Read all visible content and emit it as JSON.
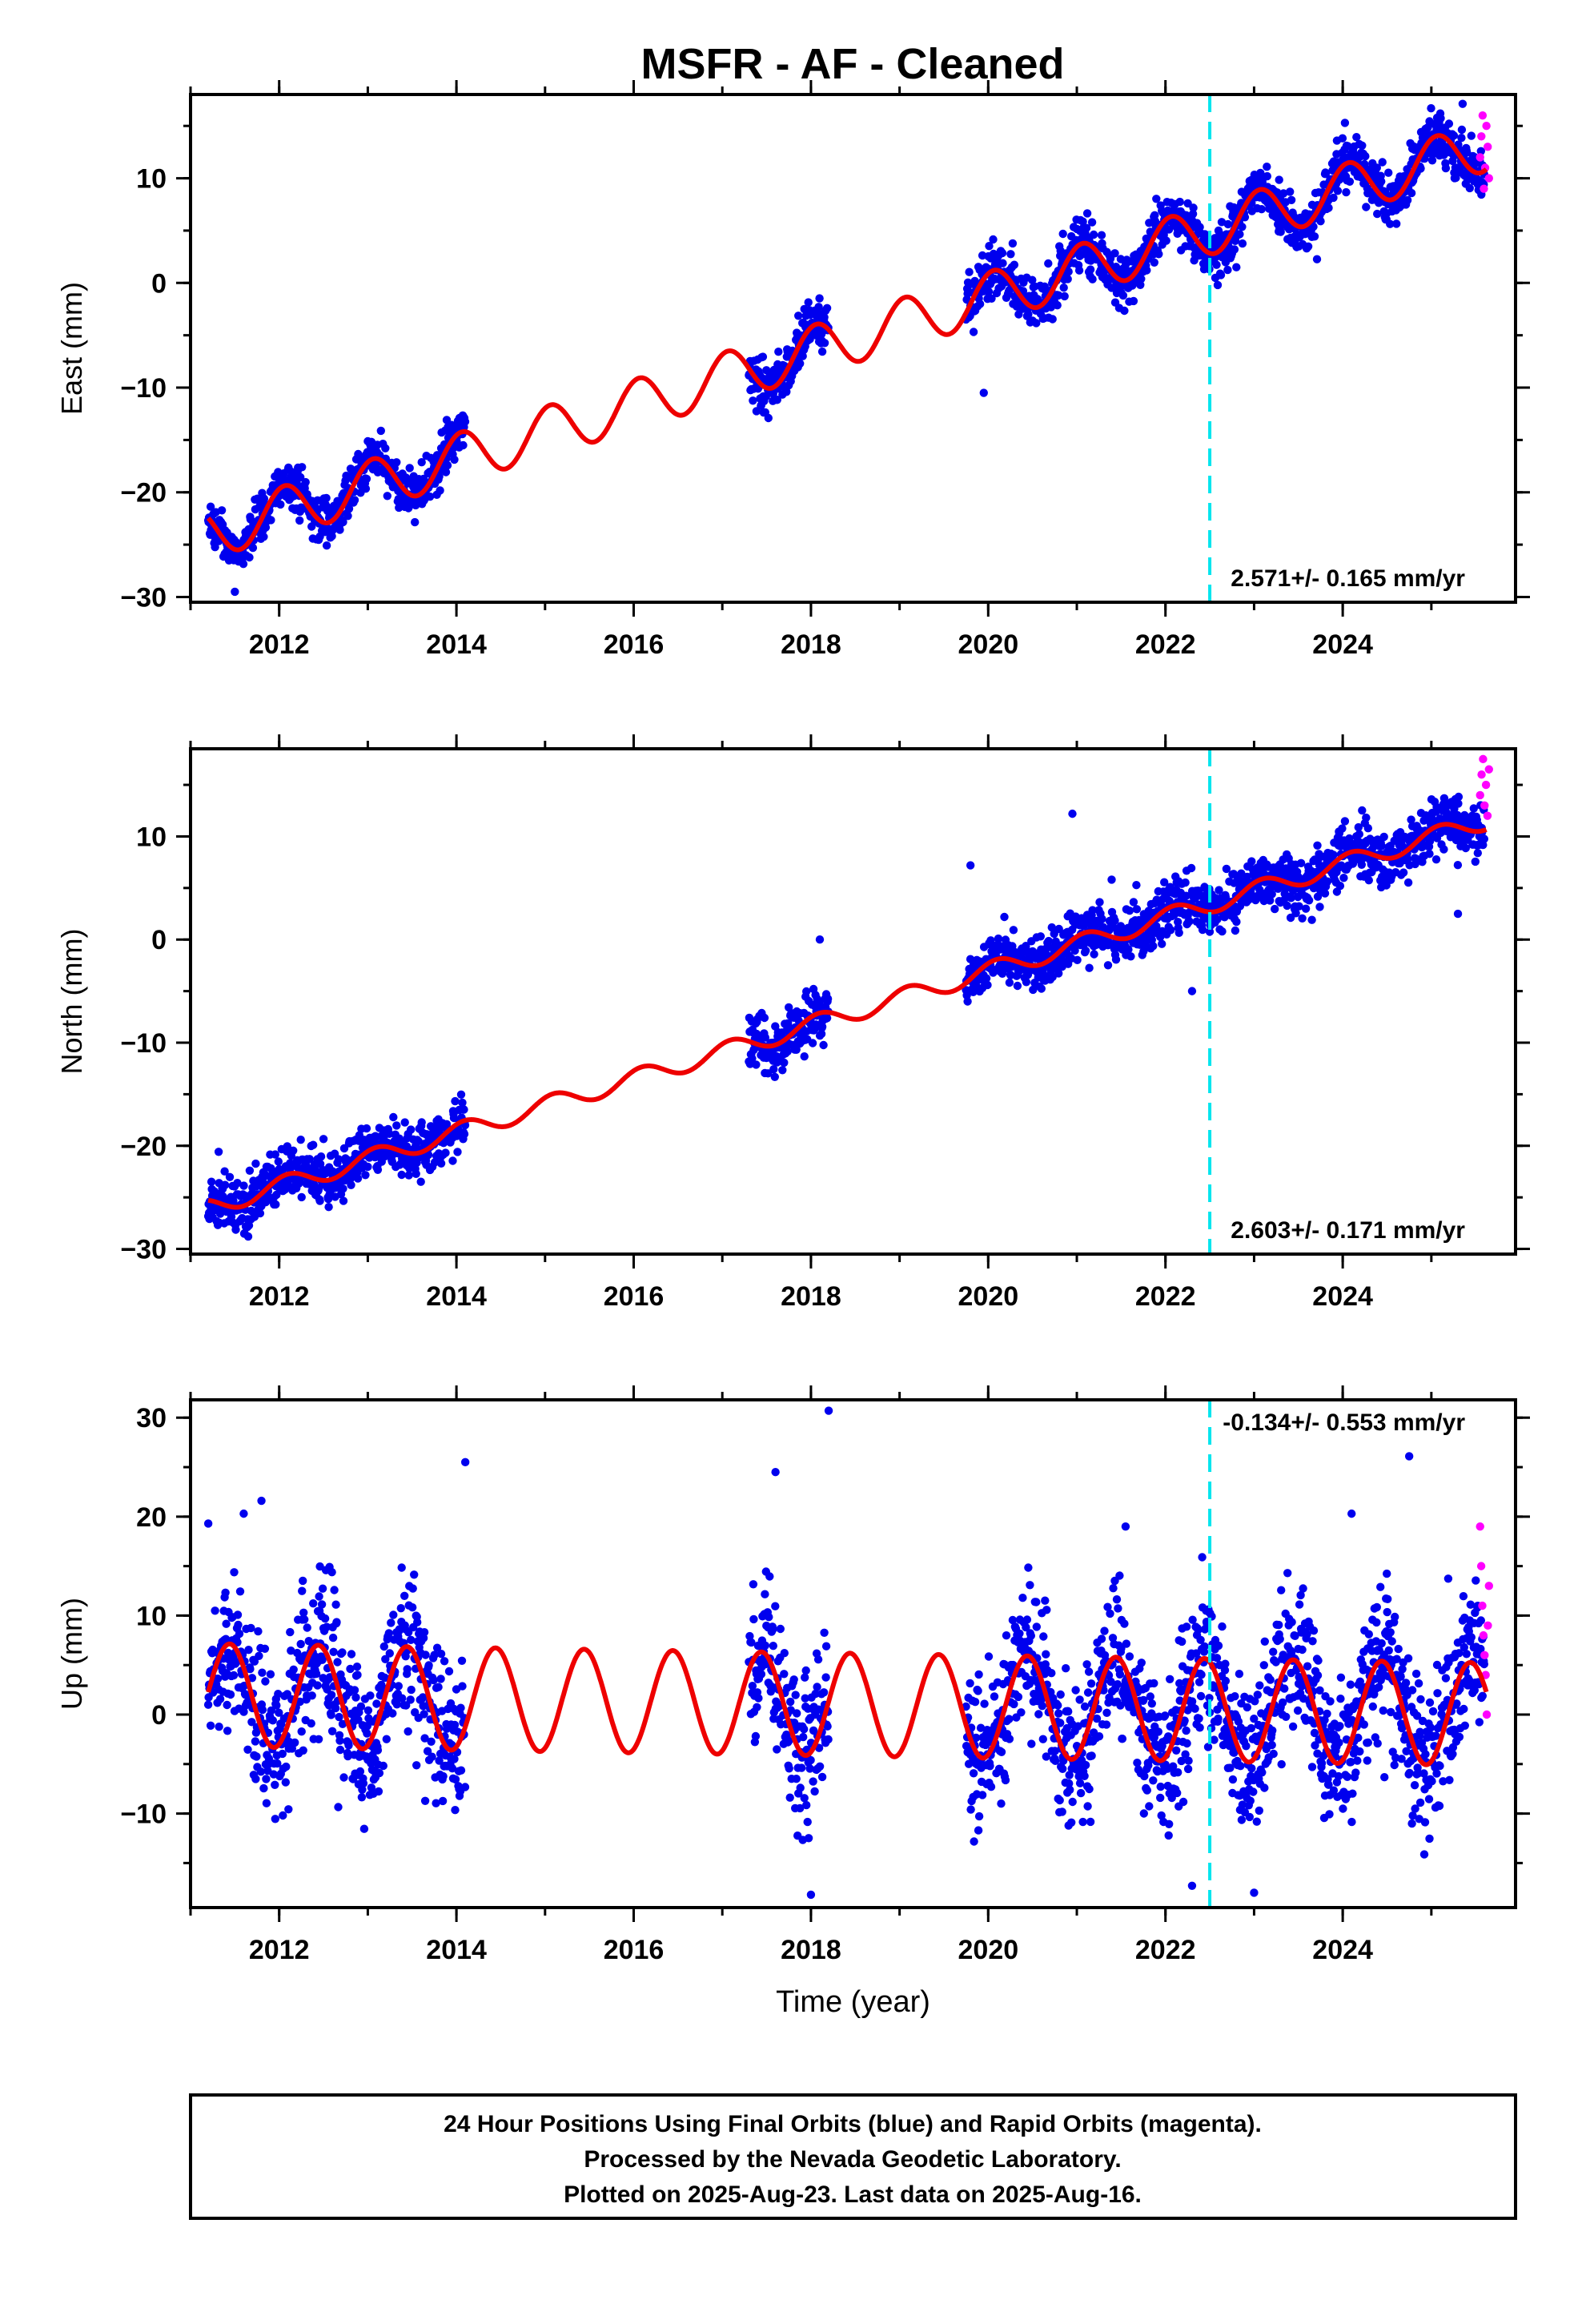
{
  "title": "MSFR  - AF - Cleaned",
  "footer": {
    "lines": [
      "24 Hour Positions Using Final Orbits (blue) and Rapid Orbits (magenta).",
      "Processed by the Nevada Geodetic Laboratory.",
      "Plotted on 2025-Aug-23. Last data on 2025-Aug-16."
    ]
  },
  "colors": {
    "final": "#0000ee",
    "rapid": "#ff00ff",
    "model": "#ee0000",
    "marker": "#00e5ee"
  },
  "chart_data": [
    {
      "type": "scatter",
      "ylabel": "East (mm)",
      "xlim": [
        2011.0,
        2025.95
      ],
      "ylim": [
        -30.5,
        18.0
      ],
      "x_ticks": [
        2012,
        2014,
        2016,
        2018,
        2020,
        2022,
        2024
      ],
      "y_ticks": [
        -30,
        -20,
        -10,
        0,
        10
      ],
      "marker_line_x": 2022.5,
      "rate_label": "2.571+/- 0.165 mm/yr",
      "rate_position": "bottom-right",
      "model": {
        "intercept": -24.5,
        "rate": 2.571,
        "amplitude": 2.4,
        "phase": 1.2
      },
      "data_segments": [
        [
          2011.2,
          2014.1
        ],
        [
          2017.3,
          2018.2
        ],
        [
          2019.75,
          2025.6
        ]
      ],
      "scatter_sd": 1.2,
      "rapid_range": [
        2025.55,
        2025.65
      ],
      "rapid_values": [
        12,
        14,
        16,
        9,
        11,
        15,
        13,
        10
      ],
      "outliers": [
        [
          2019.95,
          -10.5
        ],
        [
          2022.8,
          1.5
        ],
        [
          2011.5,
          -29.5
        ]
      ]
    },
    {
      "type": "scatter",
      "ylabel": "North (mm)",
      "xlim": [
        2011.0,
        2025.95
      ],
      "ylim": [
        -30.5,
        18.5
      ],
      "x_ticks": [
        2012,
        2014,
        2016,
        2018,
        2020,
        2022,
        2024
      ],
      "y_ticks": [
        -30,
        -20,
        -10,
        0,
        10
      ],
      "marker_line_x": 2022.5,
      "rate_label": "2.603+/- 0.171 mm/yr",
      "rate_position": "bottom-right",
      "model": {
        "intercept": -26.5,
        "rate": 2.603,
        "amplitude": 0.9,
        "phase": 1.0
      },
      "data_segments": [
        [
          2011.2,
          2014.1
        ],
        [
          2017.3,
          2018.2
        ],
        [
          2019.75,
          2025.6
        ]
      ],
      "scatter_sd": 1.3,
      "rapid_range": [
        2025.55,
        2025.65
      ],
      "rapid_values": [
        14,
        16,
        17.5,
        13,
        15,
        12,
        16.5
      ],
      "outliers": [
        [
          2020.95,
          12.2
        ],
        [
          2019.8,
          7.2
        ],
        [
          2018.1,
          0
        ],
        [
          2022.3,
          -5
        ],
        [
          2025.3,
          2.5
        ]
      ]
    },
    {
      "type": "scatter",
      "ylabel": "Up (mm)",
      "xlabel": "Time (year)",
      "xlim": [
        2011.0,
        2025.95
      ],
      "ylim": [
        -19.5,
        31.8
      ],
      "x_ticks": [
        2012,
        2014,
        2016,
        2018,
        2020,
        2022,
        2024
      ],
      "y_ticks": [
        -10,
        0,
        10,
        20,
        30
      ],
      "marker_line_x": 2022.5,
      "rate_label": "-0.134+/- 0.553 mm/yr",
      "rate_position": "top-right",
      "model": {
        "intercept": 2.0,
        "rate": -0.134,
        "amplitude": 5.2,
        "phase": -1.2
      },
      "data_segments": [
        [
          2011.2,
          2014.1
        ],
        [
          2017.3,
          2018.2
        ],
        [
          2019.75,
          2025.6
        ]
      ],
      "scatter_sd": 3.8,
      "rapid_range": [
        2025.55,
        2025.65
      ],
      "rapid_values": [
        19,
        15,
        11,
        8,
        6,
        4,
        0,
        9,
        13
      ],
      "outliers": [
        [
          2018.2,
          30.7
        ],
        [
          2011.2,
          19.3
        ],
        [
          2011.6,
          20.3
        ],
        [
          2011.8,
          21.6
        ],
        [
          2014.1,
          25.5
        ],
        [
          2017.6,
          24.5
        ],
        [
          2024.75,
          26.1
        ],
        [
          2018.0,
          -18.2
        ],
        [
          2023.0,
          -18.0
        ],
        [
          2022.3,
          -17.3
        ],
        [
          2024.1,
          20.3
        ],
        [
          2021.55,
          19.0
        ]
      ]
    }
  ]
}
